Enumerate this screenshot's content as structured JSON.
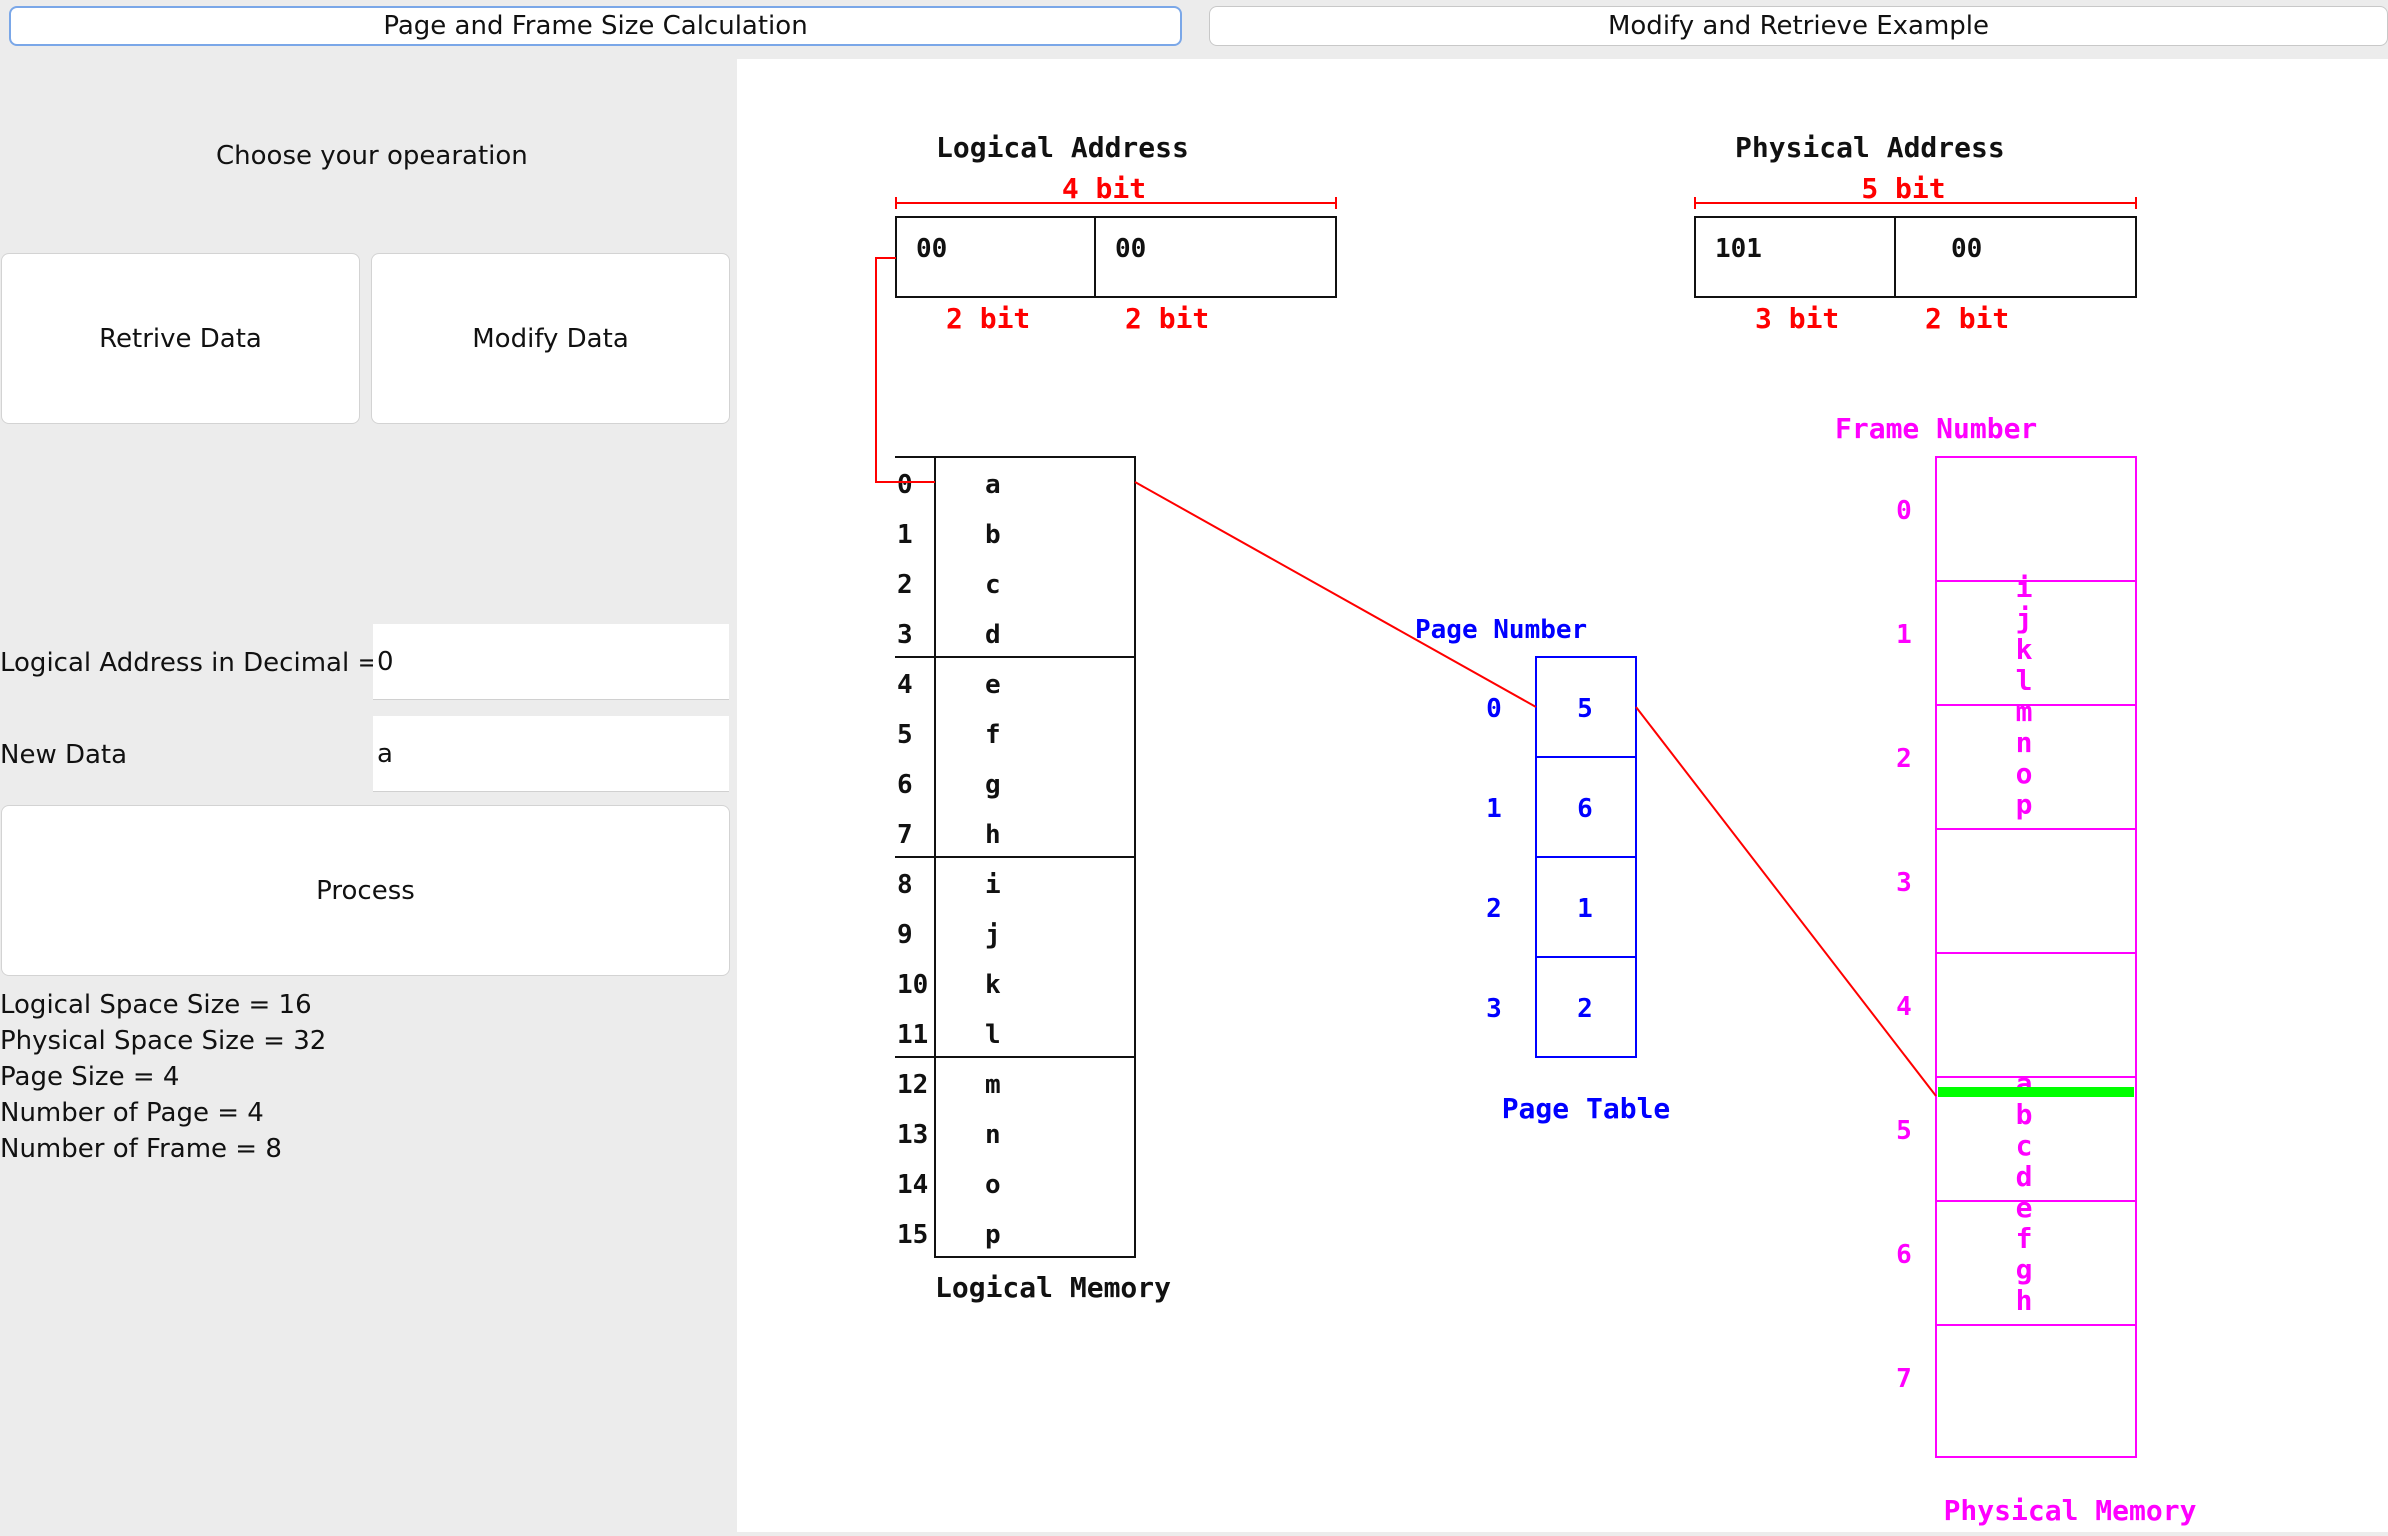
{
  "tabs": [
    {
      "label": "Page and Frame Size Calculation",
      "active": true
    },
    {
      "label": "Modify and Retrieve Example",
      "active": false
    }
  ],
  "left_panel": {
    "operation_prompt": "Choose your opearation",
    "retrieve_button": "Retrive Data",
    "modify_button": "Modify Data",
    "logical_address_label": "Logical Address in Decimal =",
    "logical_address_value": "0",
    "new_data_label": "New Data",
    "new_data_value": "a",
    "process_button": "Process",
    "stats": [
      "Logical Space Size = 16",
      "Physical Space Size = 32",
      "Page Size = 4",
      "Number of Page = 4",
      "Number of Frame = 8"
    ]
  },
  "diagram": {
    "logical_address": {
      "title": "Logical Address",
      "total_bits": "4 bit",
      "fields": [
        "00",
        "00"
      ],
      "field_bits": [
        "2 bit",
        "2 bit"
      ]
    },
    "physical_address": {
      "title": "Physical Address",
      "total_bits": "5 bit",
      "fields": [
        "101",
        "00"
      ],
      "field_bits": [
        "3 bit",
        "2 bit"
      ]
    },
    "logical_memory": {
      "title": "Logical Memory",
      "indices": [
        "0",
        "1",
        "2",
        "3",
        "4",
        "5",
        "6",
        "7",
        "8",
        "9",
        "10",
        "11",
        "12",
        "13",
        "14",
        "15"
      ],
      "cells": [
        "a",
        "b",
        "c",
        "d",
        "e",
        "f",
        "g",
        "h",
        "i",
        "j",
        "k",
        "l",
        "m",
        "n",
        "o",
        "p"
      ]
    },
    "page_table": {
      "title": "Page Table",
      "header": "Page Number",
      "page_numbers": [
        "0",
        "1",
        "2",
        "3"
      ],
      "frames": [
        "5",
        "6",
        "1",
        "2"
      ]
    },
    "physical_memory": {
      "title": "Physical Memory",
      "header": "Frame Number",
      "frame_numbers": [
        "0",
        "1",
        "2",
        "3",
        "4",
        "5",
        "6",
        "7"
      ],
      "frame_contents": [
        [],
        [
          "i",
          "j",
          "k",
          "l"
        ],
        [
          "m",
          "n",
          "o",
          "p"
        ],
        [],
        [],
        [
          "a",
          "b",
          "c",
          "d"
        ],
        [
          "e",
          "f",
          "g",
          "h"
        ],
        []
      ],
      "highlighted_frame": 5,
      "highlighted_offset": 0
    },
    "colors": {
      "address_bits": "#ff0000",
      "page_table": "#0000ff",
      "physical": "#ff00ff",
      "highlight": "#00ff00",
      "link_line": "#ff0000"
    }
  }
}
